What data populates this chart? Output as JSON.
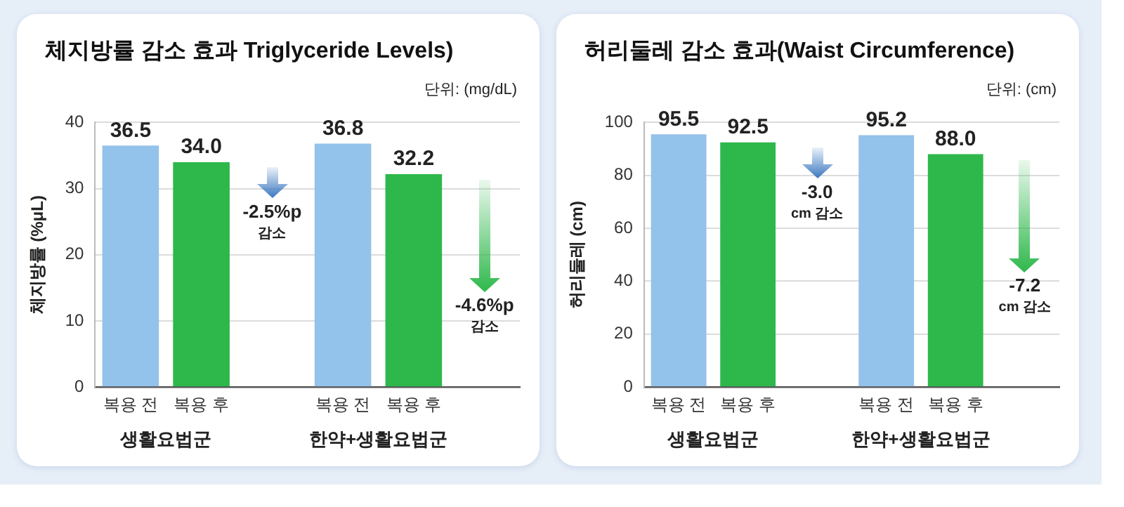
{
  "chart_data": [
    {
      "type": "bar",
      "title": "체지방률 감소 효과 Triglyceride Levels)",
      "ylabel": "체지방률 (%μL)",
      "categories": [
        "복용 전",
        "복용 후",
        null,
        "복용 전",
        "복용 후",
        null
      ],
      "values": [
        36.5,
        34.0,
        null,
        36.8,
        32.2,
        null
      ],
      "value_labels": [
        "36.5",
        "34.0",
        null,
        "36.8",
        "32.2",
        null
      ],
      "colors": [
        "#93c2ea",
        "#2eb84b",
        null,
        "#93c2ea",
        "#2eb84b",
        null
      ],
      "ylim": [
        0,
        40
      ],
      "yticks": [
        0,
        10,
        20,
        30,
        40
      ],
      "grid": "y",
      "annotations": [
        "단위: (mg/dL)",
        "생활요법군",
        "한약+생활요법군",
        "-2.5%p\n감소",
        "-4.6%p\n감소"
      ]
    },
    {
      "type": "bar",
      "title": "허리둘레 감소 효과(Waist Circumference)",
      "ylabel": "허리둘레 (cm)",
      "categories": [
        "복용 전",
        "복용 후",
        null,
        "복용 전",
        "복용 후",
        null
      ],
      "values": [
        95.5,
        92.5,
        null,
        95.2,
        88.0,
        null
      ],
      "value_labels": [
        "95.5",
        "92.5",
        null,
        "95.2",
        "88.0",
        null
      ],
      "colors": [
        "#93c2ea",
        "#2eb84b",
        null,
        "#93c2ea",
        "#2eb84b",
        null
      ],
      "ylim": [
        0,
        100
      ],
      "yticks": [
        0,
        20,
        40,
        60,
        80,
        100
      ],
      "grid": "y",
      "annotations": [
        "단위: (cm)",
        "생활요법군",
        "한약+생활요법군",
        "-3.0\ncm 감소",
        "-7.2\ncm 감소"
      ]
    }
  ]
}
